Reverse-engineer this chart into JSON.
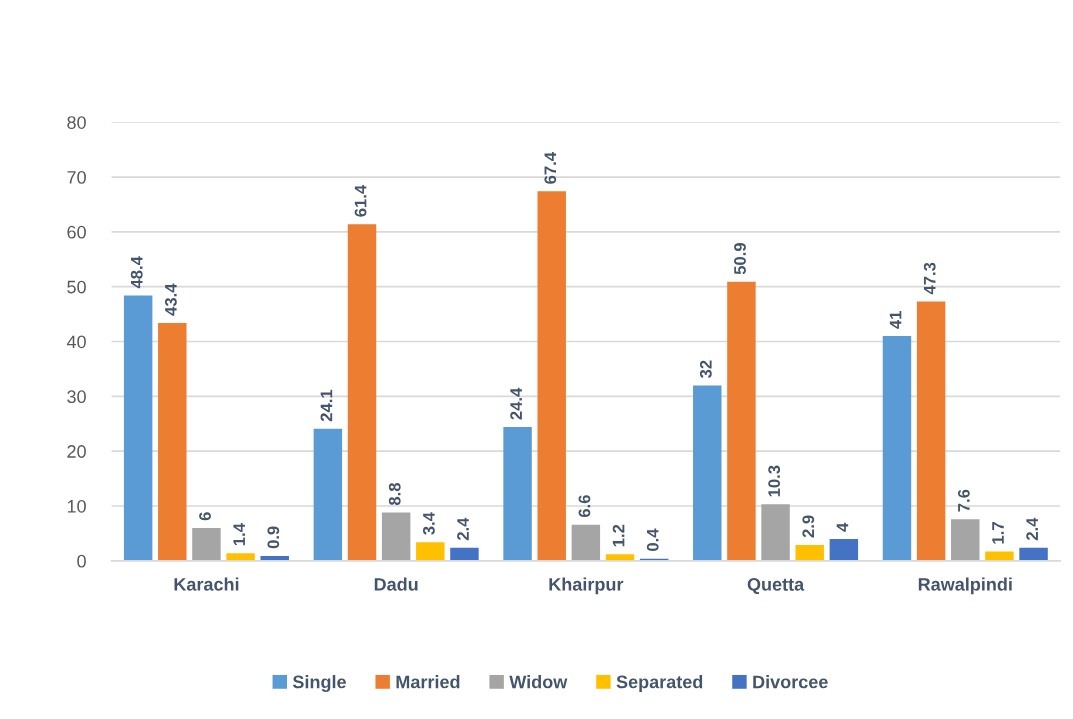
{
  "chart_data": {
    "type": "bar",
    "categories": [
      "Karachi",
      "Dadu",
      "Khairpur",
      "Quetta",
      "Rawalpindi"
    ],
    "series": [
      {
        "name": "Single",
        "color": "#5b9bd5",
        "values": [
          48.4,
          24.1,
          24.4,
          32,
          41
        ]
      },
      {
        "name": "Married",
        "color": "#ed7d31",
        "values": [
          43.4,
          61.4,
          67.4,
          50.9,
          47.3
        ]
      },
      {
        "name": "Widow",
        "color": "#a5a5a5",
        "values": [
          6,
          8.8,
          6.6,
          10.3,
          7.6
        ]
      },
      {
        "name": "Separated",
        "color": "#ffc000",
        "values": [
          1.4,
          3.4,
          1.2,
          2.9,
          1.7
        ]
      },
      {
        "name": "Divorcee",
        "color": "#4472c4",
        "values": [
          0.9,
          2.4,
          0.4,
          4,
          2.4
        ]
      }
    ],
    "ylim": [
      0,
      80
    ],
    "yticks": [
      0,
      10,
      20,
      30,
      40,
      50,
      60,
      70,
      80
    ],
    "grid": "y",
    "legend": "bottom",
    "data_labels": true
  }
}
